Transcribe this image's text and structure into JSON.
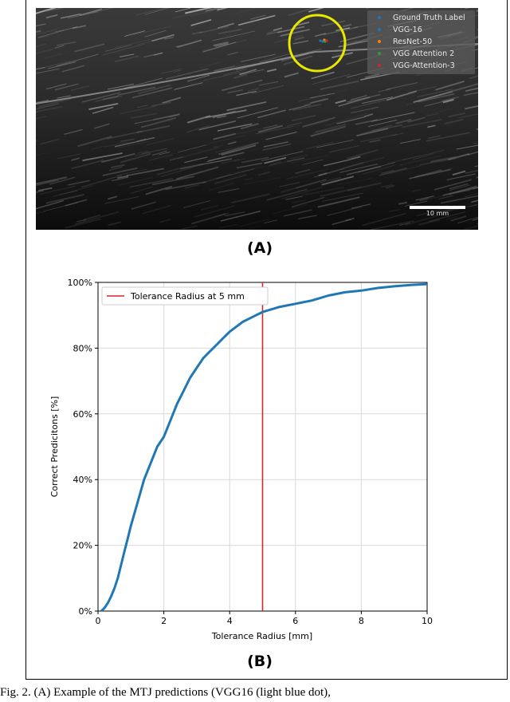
{
  "panel_a": {
    "label": "(A)",
    "legend": [
      {
        "label": "Ground Truth Label",
        "color": "#1f77b4"
      },
      {
        "label": "VGG-16",
        "color": "#1f77b4"
      },
      {
        "label": "ResNet-50",
        "color": "#ff7f0e"
      },
      {
        "label": "VGG Attention 2",
        "color": "#2ca02c"
      },
      {
        "label": "VGG-Attention-3",
        "color": "#d62728"
      }
    ],
    "scale_bar_label": "10 mm",
    "highlight_circle_color": "#e8e800"
  },
  "panel_b": {
    "label": "(B)"
  },
  "chart_data": {
    "type": "line",
    "title": "",
    "xlabel": "Tolerance Radius [mm]",
    "ylabel": "Correct Predicitons [%]",
    "xlim": [
      0,
      10
    ],
    "ylim": [
      0,
      100
    ],
    "xticks": [
      0,
      2,
      4,
      6,
      8,
      10
    ],
    "yticks": [
      0,
      20,
      40,
      60,
      80,
      100
    ],
    "ytick_labels": [
      "0%",
      "20%",
      "40%",
      "60%",
      "80%",
      "100%"
    ],
    "grid": true,
    "legend_position": "top-left",
    "series": [
      {
        "color": "#1f77b4",
        "x": [
          0.1,
          0.2,
          0.3,
          0.4,
          0.5,
          0.6,
          0.7,
          0.8,
          0.9,
          1.0,
          1.2,
          1.4,
          1.6,
          1.8,
          2.0,
          2.2,
          2.4,
          2.6,
          2.8,
          3.0,
          3.2,
          3.4,
          3.6,
          3.8,
          4.0,
          4.2,
          4.4,
          4.6,
          4.8,
          5.0,
          5.5,
          6.0,
          6.5,
          7.0,
          7.5,
          8.0,
          8.5,
          9.0,
          9.5,
          10.0
        ],
        "values": [
          0,
          1,
          2.5,
          4.5,
          7,
          10,
          14,
          18,
          22,
          26,
          33,
          40,
          45,
          50,
          53,
          58,
          63,
          67,
          71,
          74,
          77,
          79,
          81,
          83,
          85,
          86.5,
          88,
          89,
          90,
          91,
          92.5,
          93.5,
          94.5,
          96,
          97,
          97.5,
          98.3,
          98.8,
          99.2,
          99.5
        ]
      }
    ],
    "annotations": [
      {
        "type": "vline",
        "x": 5,
        "color": "#d62728",
        "label": "Tolerance Radius at 5 mm"
      }
    ]
  },
  "caption": "Fig. 2.   (A) Example of the MTJ predictions (VGG16 (light blue dot),"
}
